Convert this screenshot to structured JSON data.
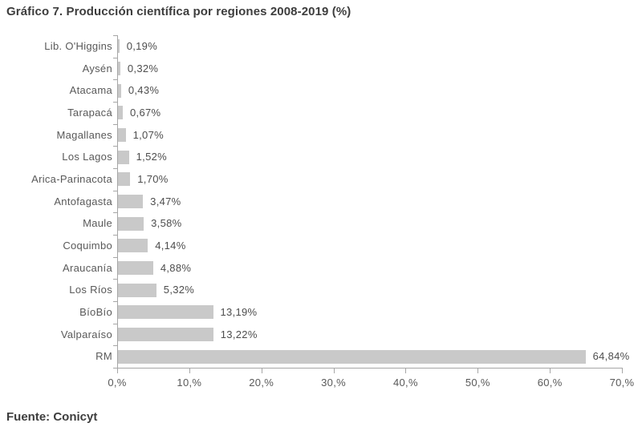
{
  "title": "Gráfico 7. Producción científica por regiones 2008-2019 (%)",
  "source": "Fuente: Conicyt",
  "colors": {
    "bar": "#c9c9c9",
    "axis": "#a6a6a6",
    "category_label": "#595959",
    "value_label": "#4d4d4d",
    "title": "#3d3d3d",
    "background": "#ffffff"
  },
  "chart_data": {
    "type": "bar",
    "orientation": "horizontal",
    "title": "Gráfico 7. Producción científica por regiones 2008-2019 (%)",
    "xlabel": "",
    "ylabel": "",
    "categories": [
      "Lib. O'Higgins",
      "Aysén",
      "Atacama",
      "Tarapacá",
      "Magallanes",
      "Los Lagos",
      "Arica-Parinacota",
      "Antofagasta",
      "Maule",
      "Coquimbo",
      "Araucanía",
      "Los Ríos",
      "BíoBío",
      "Valparaíso",
      "RM"
    ],
    "values": [
      0.19,
      0.32,
      0.43,
      0.67,
      1.07,
      1.52,
      1.7,
      3.47,
      3.58,
      4.14,
      4.88,
      5.32,
      13.19,
      13.22,
      64.84
    ],
    "value_labels": [
      "0,19%",
      "0,32%",
      "0,43%",
      "0,67%",
      "1,07%",
      "1,52%",
      "1,70%",
      "3,47%",
      "3,58%",
      "4,14%",
      "4,88%",
      "5,32%",
      "13,19%",
      "13,22%",
      "64,84%"
    ],
    "x_ticks": [
      0,
      10,
      20,
      30,
      40,
      50,
      60,
      70
    ],
    "x_tick_labels": [
      "0,%",
      "10,%",
      "20,%",
      "30,%",
      "40,%",
      "50,%",
      "60,%",
      "70,%"
    ],
    "xlim": [
      0,
      70
    ],
    "grid": false,
    "legend": false,
    "source": "Fuente: Conicyt"
  }
}
